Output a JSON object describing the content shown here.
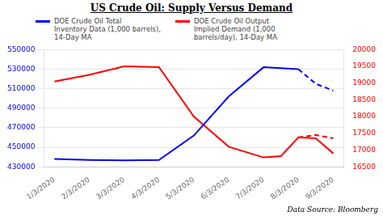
{
  "chart_data": {
    "type": "line",
    "title": "US Crude Oil: Supply Versus Demand",
    "annotations": [
      "Data Source: Bloomberg"
    ],
    "xlim": [
      -0.3,
      8.3
    ],
    "xticks": [
      {
        "value": 0,
        "label": "1/3/2020"
      },
      {
        "value": 1,
        "label": "2/3/2020"
      },
      {
        "value": 2,
        "label": "3/3/2020"
      },
      {
        "value": 3,
        "label": "4/3/2020"
      },
      {
        "value": 4,
        "label": "5/3/2020"
      },
      {
        "value": 5,
        "label": "6/3/2020"
      },
      {
        "value": 6,
        "label": "7/3/2020"
      },
      {
        "value": 7,
        "label": "8/3/2020"
      },
      {
        "value": 8,
        "label": "9/3/2020"
      }
    ],
    "ylim": [
      430000,
      550000
    ],
    "yticks": [
      430000,
      450000,
      470000,
      490000,
      510000,
      530000,
      550000
    ],
    "y2lim": [
      16500,
      20000
    ],
    "y2ticks": [
      16500,
      17000,
      17500,
      18000,
      18500,
      19000,
      19500,
      20000
    ],
    "grid": true,
    "legend": "top",
    "series": [
      {
        "name": "DOE Crude Oil Total\nInventory Data (1,000 barrels),\n14-Day MA",
        "color": "blue",
        "line_style": "solid",
        "axis": "y",
        "x": [
          0,
          1,
          2,
          3,
          4,
          5,
          6,
          7
        ],
        "values": [
          438000,
          437000,
          436500,
          437000,
          462000,
          502000,
          532000,
          530000
        ]
      },
      {
        "color": "blue",
        "line_style": "dashed",
        "axis": "y",
        "x": [
          7,
          7.5,
          8
        ],
        "values": [
          530000,
          515000,
          508000
        ]
      },
      {
        "name": "DOE Crude Oil Output\nImplied Demand (1,000\nbarrels/day), 14-Day MA",
        "color": "red",
        "line_style": "solid",
        "axis": "y2",
        "x": [
          0,
          1,
          2,
          3,
          4,
          5,
          6,
          6.5,
          7,
          7.5,
          8
        ],
        "values": [
          19050,
          19250,
          19500,
          19480,
          18000,
          17100,
          16780,
          16820,
          17380,
          17350,
          16900
        ]
      },
      {
        "color": "red",
        "line_style": "dashed",
        "axis": "y2",
        "x": [
          7,
          7.5,
          8
        ],
        "values": [
          17380,
          17450,
          17350
        ]
      }
    ]
  }
}
